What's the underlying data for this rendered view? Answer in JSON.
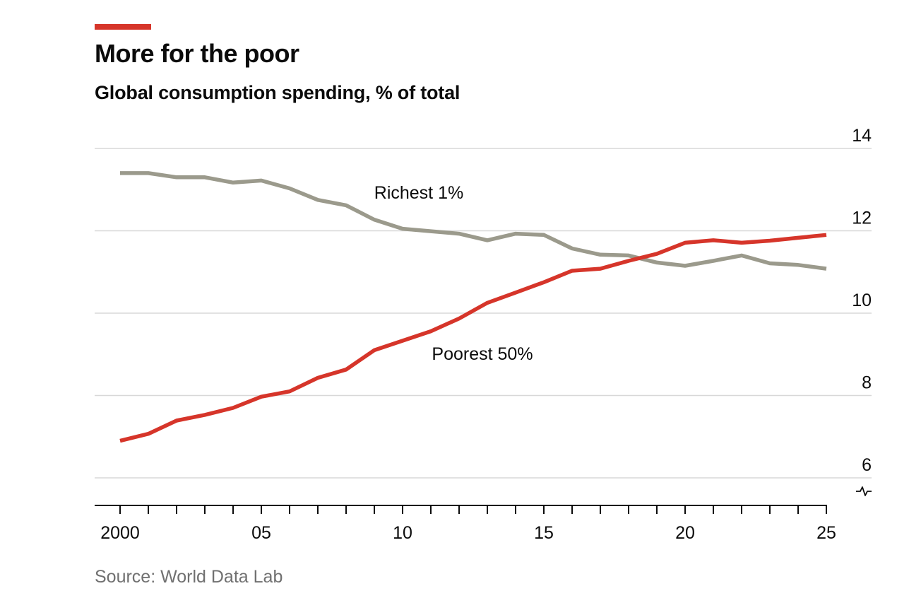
{
  "header": {
    "title": "More for the poor",
    "subtitle": "Global consumption spending, % of total"
  },
  "footer": {
    "source": "Source: World Data Lab"
  },
  "colors": {
    "accent": "#d6352a",
    "poorest": "#d6352a",
    "richest": "#9b9a8c",
    "grid": "#d8d8d8",
    "axis": "#0b0b0b"
  },
  "chart_data": {
    "type": "line",
    "title": "More for the poor",
    "subtitle": "Global consumption spending, % of total",
    "xlabel": "",
    "ylabel": "",
    "x": [
      2000,
      2001,
      2002,
      2003,
      2004,
      2005,
      2006,
      2007,
      2008,
      2009,
      2010,
      2011,
      2012,
      2013,
      2014,
      2015,
      2016,
      2017,
      2018,
      2019,
      2020,
      2021,
      2022,
      2023,
      2024,
      2025
    ],
    "xticks": [
      2000,
      2005,
      2010,
      2015,
      2020,
      2025
    ],
    "xtick_labels": [
      "2000",
      "05",
      "10",
      "15",
      "20",
      "25"
    ],
    "ylim": [
      6,
      14
    ],
    "yticks": [
      6,
      8,
      10,
      12,
      14
    ],
    "ytick_labels": [
      "6",
      "8",
      "10",
      "12",
      "14"
    ],
    "axis_break": true,
    "grid": true,
    "series": [
      {
        "name": "Richest 1%",
        "values": [
          13.4,
          13.4,
          13.3,
          13.3,
          13.17,
          13.22,
          13.03,
          12.75,
          12.62,
          12.27,
          12.05,
          11.99,
          11.93,
          11.77,
          11.93,
          11.9,
          11.57,
          11.42,
          11.4,
          11.23,
          11.15,
          11.27,
          11.4,
          11.21,
          11.17,
          11.08
        ]
      },
      {
        "name": "Poorest 50%",
        "values": [
          6.9,
          7.07,
          7.39,
          7.53,
          7.7,
          7.97,
          8.1,
          8.43,
          8.63,
          9.1,
          9.33,
          9.56,
          9.87,
          10.25,
          10.5,
          10.75,
          11.03,
          11.08,
          11.27,
          11.44,
          11.71,
          11.77,
          11.71,
          11.76,
          11.83,
          11.9
        ]
      }
    ]
  }
}
